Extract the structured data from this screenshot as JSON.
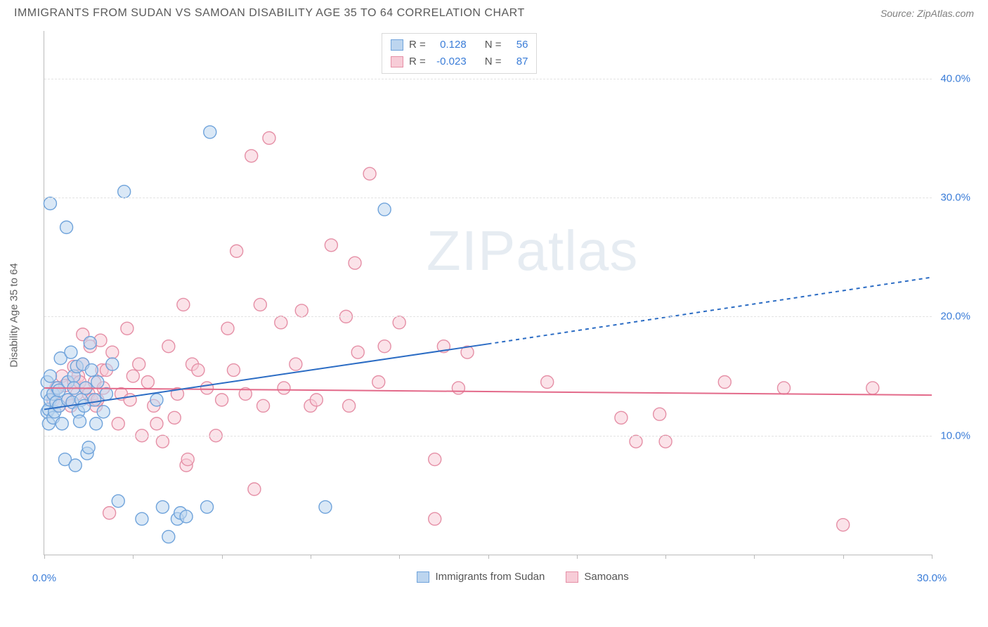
{
  "title": "IMMIGRANTS FROM SUDAN VS SAMOAN DISABILITY AGE 35 TO 64 CORRELATION CHART",
  "source": "Source: ZipAtlas.com",
  "y_axis_label": "Disability Age 35 to 64",
  "watermark_a": "ZIP",
  "watermark_b": "atlas",
  "chart": {
    "type": "scatter",
    "xlim": [
      0,
      30
    ],
    "ylim": [
      0,
      44
    ],
    "y_ticks": [
      10,
      20,
      30,
      40
    ],
    "y_tick_labels": [
      "10.0%",
      "20.0%",
      "30.0%",
      "40.0%"
    ],
    "x_ticks": [
      0,
      3,
      6,
      9,
      12,
      15,
      18,
      21,
      24,
      27,
      30
    ],
    "x_tick_labels_shown": {
      "0": "0.0%",
      "30": "30.0%"
    },
    "background_color": "#ffffff",
    "grid_color": "#e3e3e3",
    "axis_color": "#bbbbbb",
    "marker_radius": 9,
    "marker_stroke_width": 1.4,
    "series_blue": {
      "label": "Immigrants from Sudan",
      "fill": "#bcd5ef",
      "stroke": "#6fa3db",
      "fill_opacity": 0.55,
      "r_value": "0.128",
      "n_value": "56",
      "trend": {
        "x1": 0,
        "y1": 12.2,
        "x2_solid": 15,
        "y2_solid": 17.7,
        "x2": 30,
        "y2": 23.3,
        "color": "#2b6cc4",
        "width": 2,
        "dash": "5,5"
      },
      "points": [
        [
          0.1,
          12.0
        ],
        [
          0.1,
          13.5
        ],
        [
          0.1,
          14.5
        ],
        [
          0.15,
          11.0
        ],
        [
          0.15,
          12.2
        ],
        [
          0.2,
          29.5
        ],
        [
          0.2,
          15.0
        ],
        [
          0.2,
          13.0
        ],
        [
          0.3,
          13.5
        ],
        [
          0.3,
          11.5
        ],
        [
          0.35,
          12.0
        ],
        [
          0.4,
          12.8
        ],
        [
          0.45,
          14.0
        ],
        [
          0.5,
          12.5
        ],
        [
          0.5,
          13.8
        ],
        [
          0.55,
          16.5
        ],
        [
          0.6,
          11.0
        ],
        [
          0.7,
          8.0
        ],
        [
          0.75,
          27.5
        ],
        [
          0.8,
          14.5
        ],
        [
          0.8,
          13.0
        ],
        [
          0.9,
          17.0
        ],
        [
          0.95,
          12.8
        ],
        [
          1.0,
          15.0
        ],
        [
          1.0,
          14.0
        ],
        [
          1.05,
          7.5
        ],
        [
          1.1,
          15.8
        ],
        [
          1.15,
          12.0
        ],
        [
          1.2,
          11.2
        ],
        [
          1.25,
          13.0
        ],
        [
          1.3,
          16.0
        ],
        [
          1.35,
          12.5
        ],
        [
          1.4,
          14.0
        ],
        [
          1.45,
          8.5
        ],
        [
          1.5,
          9.0
        ],
        [
          1.55,
          17.8
        ],
        [
          1.6,
          15.5
        ],
        [
          1.7,
          13.0
        ],
        [
          1.75,
          11.0
        ],
        [
          1.8,
          14.5
        ],
        [
          2.0,
          12.0
        ],
        [
          2.1,
          13.5
        ],
        [
          2.3,
          16.0
        ],
        [
          2.5,
          4.5
        ],
        [
          2.7,
          30.5
        ],
        [
          3.3,
          3.0
        ],
        [
          3.8,
          13.0
        ],
        [
          4.0,
          4.0
        ],
        [
          4.2,
          1.5
        ],
        [
          4.5,
          3.0
        ],
        [
          4.6,
          3.5
        ],
        [
          4.8,
          3.2
        ],
        [
          5.5,
          4.0
        ],
        [
          5.6,
          35.5
        ],
        [
          9.5,
          4.0
        ],
        [
          11.5,
          29.0
        ]
      ]
    },
    "series_pink": {
      "label": "Samoans",
      "fill": "#f7ccd7",
      "stroke": "#e58fa6",
      "fill_opacity": 0.55,
      "r_value": "-0.023",
      "n_value": "87",
      "trend": {
        "x1": 0,
        "y1": 14.0,
        "x2": 30,
        "y2": 13.4,
        "color": "#e36a8a",
        "width": 2
      },
      "points": [
        [
          0.3,
          13.0
        ],
        [
          0.4,
          14.0
        ],
        [
          0.5,
          12.5
        ],
        [
          0.6,
          15.0
        ],
        [
          0.7,
          14.2
        ],
        [
          0.8,
          13.0
        ],
        [
          0.9,
          12.5
        ],
        [
          1.0,
          14.5
        ],
        [
          1.0,
          15.8
        ],
        [
          1.1,
          13.5
        ],
        [
          1.15,
          15.0
        ],
        [
          1.2,
          14.5
        ],
        [
          1.3,
          18.5
        ],
        [
          1.3,
          16.0
        ],
        [
          1.4,
          14.0
        ],
        [
          1.5,
          13.5
        ],
        [
          1.55,
          17.5
        ],
        [
          1.6,
          13.0
        ],
        [
          1.7,
          14.5
        ],
        [
          1.75,
          12.5
        ],
        [
          1.8,
          13.0
        ],
        [
          1.9,
          18.0
        ],
        [
          1.95,
          15.5
        ],
        [
          2.0,
          14.0
        ],
        [
          2.1,
          15.5
        ],
        [
          2.2,
          3.5
        ],
        [
          2.3,
          17.0
        ],
        [
          2.5,
          11.0
        ],
        [
          2.6,
          13.5
        ],
        [
          2.8,
          19.0
        ],
        [
          2.9,
          13.0
        ],
        [
          3.0,
          15.0
        ],
        [
          3.2,
          16.0
        ],
        [
          3.3,
          10.0
        ],
        [
          3.5,
          14.5
        ],
        [
          3.7,
          12.5
        ],
        [
          3.8,
          11.0
        ],
        [
          4.0,
          9.5
        ],
        [
          4.2,
          17.5
        ],
        [
          4.4,
          11.5
        ],
        [
          4.5,
          13.5
        ],
        [
          4.7,
          21.0
        ],
        [
          4.8,
          7.5
        ],
        [
          4.85,
          8.0
        ],
        [
          5.0,
          16.0
        ],
        [
          5.2,
          15.5
        ],
        [
          5.5,
          14.0
        ],
        [
          5.8,
          10.0
        ],
        [
          6.0,
          13.0
        ],
        [
          6.2,
          19.0
        ],
        [
          6.4,
          15.5
        ],
        [
          6.5,
          25.5
        ],
        [
          6.8,
          13.5
        ],
        [
          7.0,
          33.5
        ],
        [
          7.1,
          5.5
        ],
        [
          7.3,
          21.0
        ],
        [
          7.4,
          12.5
        ],
        [
          7.6,
          35.0
        ],
        [
          8.0,
          19.5
        ],
        [
          8.1,
          14.0
        ],
        [
          8.5,
          16.0
        ],
        [
          8.7,
          20.5
        ],
        [
          9.0,
          12.5
        ],
        [
          9.2,
          13.0
        ],
        [
          9.7,
          26.0
        ],
        [
          10.2,
          20.0
        ],
        [
          10.3,
          12.5
        ],
        [
          10.5,
          24.5
        ],
        [
          10.6,
          17.0
        ],
        [
          11.0,
          32.0
        ],
        [
          11.3,
          14.5
        ],
        [
          11.5,
          17.5
        ],
        [
          12.0,
          19.5
        ],
        [
          13.2,
          8.0
        ],
        [
          13.2,
          3.0
        ],
        [
          13.5,
          17.5
        ],
        [
          14.0,
          14.0
        ],
        [
          14.3,
          17.0
        ],
        [
          17.0,
          14.5
        ],
        [
          19.5,
          11.5
        ],
        [
          20.0,
          9.5
        ],
        [
          20.8,
          11.8
        ],
        [
          21.0,
          9.5
        ],
        [
          23.0,
          14.5
        ],
        [
          25.0,
          14.0
        ],
        [
          27.0,
          2.5
        ],
        [
          28.0,
          14.0
        ]
      ]
    }
  },
  "stats_labels": {
    "r": "R =",
    "n": "N ="
  },
  "colors": {
    "tick_text": "#3b7dd8",
    "title_text": "#5a5a5a",
    "source_text": "#808080"
  }
}
